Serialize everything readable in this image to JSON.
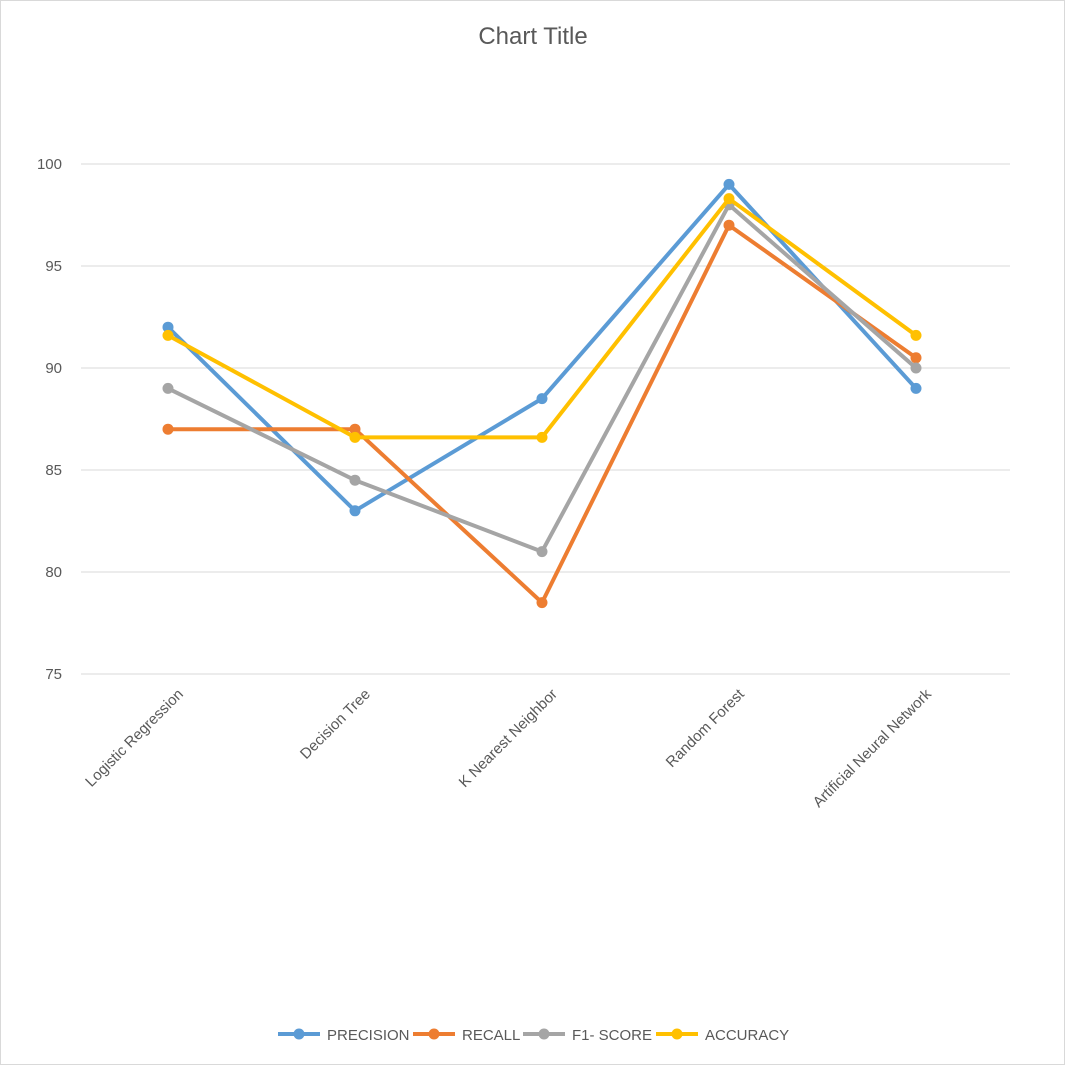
{
  "chart_data": {
    "type": "line",
    "title": "Chart Title",
    "xlabel": "",
    "ylabel": "",
    "categories": [
      "Logistic Regression",
      "Decision Tree",
      "K Nearest Neighbor",
      "Random Forest",
      "Artificial Neural Network"
    ],
    "ylim": [
      75,
      100
    ],
    "yticks": [
      "75",
      "80",
      "85",
      "90",
      "95",
      "100"
    ],
    "grid": true,
    "legend_position": "bottom",
    "series": [
      {
        "name": "PRECISION",
        "color": "#5B9BD5",
        "values": [
          92,
          83,
          88.5,
          99,
          89
        ]
      },
      {
        "name": "RECALL",
        "color": "#ED7D31",
        "values": [
          87,
          87,
          78.5,
          97,
          90.5
        ]
      },
      {
        "name": "F1- SCORE",
        "color": "#A5A5A5",
        "values": [
          89,
          84.5,
          81,
          98,
          90
        ]
      },
      {
        "name": "ACCURACY",
        "color": "#FFC000",
        "values": [
          91.6,
          86.6,
          86.6,
          98.3,
          91.6
        ]
      }
    ]
  }
}
